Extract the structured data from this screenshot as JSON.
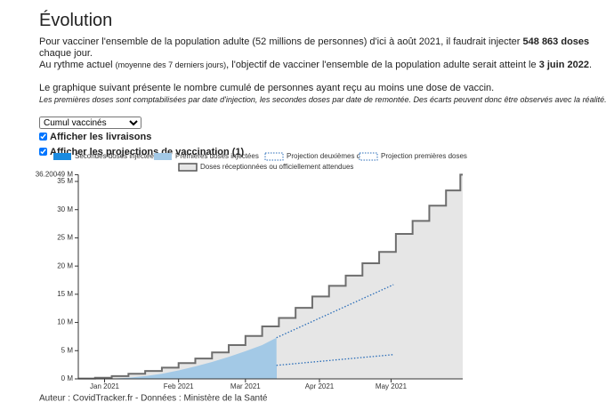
{
  "header": {
    "title": "Évolution"
  },
  "intro": {
    "line1": [
      "Pour vacciner l'ensemble de la population adulte (52 millions de personnes) d'ici à août 2021, il faudrait injecter ",
      "548 863 doses",
      " chaque jour."
    ],
    "line2": [
      "Au rythme actuel ",
      "(moyenne des 7 derniers jours)",
      ", l'objectif de vacciner l'ensemble de la population adulte serait atteint le ",
      "3 juin 2022",
      "."
    ],
    "line3": "Le graphique suivant présente le nombre cumulé de personnes ayant reçu au moins une dose de vaccin.",
    "line4": "Les premières doses sont comptabilisées par date d'injection, les secondes doses par date de remontée. Des écarts peuvent donc être observés avec la réalité."
  },
  "controls": {
    "select": "Cumul vaccinés",
    "checkbox1": "Afficher les livraisons",
    "checkbox2": "Afficher les projections de vaccination (1)"
  },
  "chart_data": {
    "type": "area",
    "xlim": [
      -11,
      150
    ],
    "xticks": [
      {
        "value": 0,
        "label": "Jan 2021"
      },
      {
        "value": 31,
        "label": "Feb 2021"
      },
      {
        "value": 59,
        "label": "Mar 2021"
      },
      {
        "value": 90,
        "label": "Apr 2021"
      },
      {
        "value": 120,
        "label": "May 2021"
      }
    ],
    "ylim": [
      0,
      36.20049
    ],
    "yticks": [
      {
        "value": 0,
        "label": "0 M"
      },
      {
        "value": 5,
        "label": "5 M"
      },
      {
        "value": 10,
        "label": "10 M"
      },
      {
        "value": 15,
        "label": "15 M"
      },
      {
        "value": 20,
        "label": "20 M"
      },
      {
        "value": 25,
        "label": "25 M"
      },
      {
        "value": 30,
        "label": "30 M"
      },
      {
        "value": 35,
        "label": "35 M"
      },
      {
        "value": 36.20049,
        "label": "36.20049 M"
      }
    ],
    "series": [
      {
        "name": "Secondes doses injectées",
        "color": "#1a8be0",
        "kind": "area",
        "x": [
          17,
          24,
          31,
          38,
          45,
          52,
          59,
          66,
          72
        ],
        "values": [
          0,
          0.1,
          0.3,
          0.6,
          0.9,
          1.2,
          1.6,
          2.0,
          2.4
        ]
      },
      {
        "name": "Premières doses injectées",
        "color": "#a3c9e6",
        "kind": "area",
        "x": [
          -4,
          3,
          10,
          17,
          24,
          31,
          38,
          45,
          52,
          59,
          66,
          72
        ],
        "values": [
          0,
          0.05,
          0.2,
          0.5,
          0.9,
          1.5,
          2.2,
          3.0,
          3.9,
          4.9,
          6.0,
          7.3
        ]
      },
      {
        "name": "Projection deuxièmes doses",
        "color": "#2a6db8",
        "kind": "dotted",
        "x": [
          72,
          121
        ],
        "values": [
          2.4,
          4.3
        ]
      },
      {
        "name": "Projection premières doses",
        "color": "#2a6db8",
        "kind": "dotted",
        "x": [
          72,
          121
        ],
        "values": [
          7.3,
          16.7
        ]
      },
      {
        "name": "Doses réceptionnées ou officiellement attendues",
        "color": "#e6e6e6",
        "kind": "step",
        "x": [
          -11,
          -4,
          3,
          10,
          17,
          24,
          31,
          38,
          45,
          52,
          59,
          66,
          73,
          80,
          87,
          94,
          101,
          108,
          115,
          122,
          129,
          136,
          143,
          149
        ],
        "values": [
          0.05,
          0.2,
          0.5,
          0.9,
          1.4,
          2.0,
          2.8,
          3.6,
          4.7,
          6.0,
          7.6,
          9.3,
          10.8,
          12.6,
          14.6,
          16.5,
          18.3,
          20.5,
          22.5,
          25.7,
          28.0,
          30.7,
          33.4,
          36.20049
        ]
      }
    ]
  },
  "footer": "Auteur : CovidTracker.fr - Données : Ministère de la Santé"
}
